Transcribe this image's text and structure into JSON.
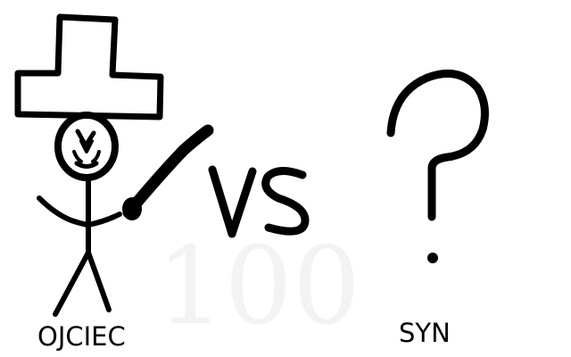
{
  "left_figure": {
    "caption": "OJCIEC",
    "icon": "stick-figure-with-hat-and-stick"
  },
  "versus": {
    "text": "VS"
  },
  "right_figure": {
    "caption": "SYN",
    "icon": "question-mark"
  },
  "watermark": {
    "text": "100"
  },
  "colors": {
    "ink": "#000000",
    "background": "#ffffff",
    "watermark": "#f4f4f4"
  }
}
